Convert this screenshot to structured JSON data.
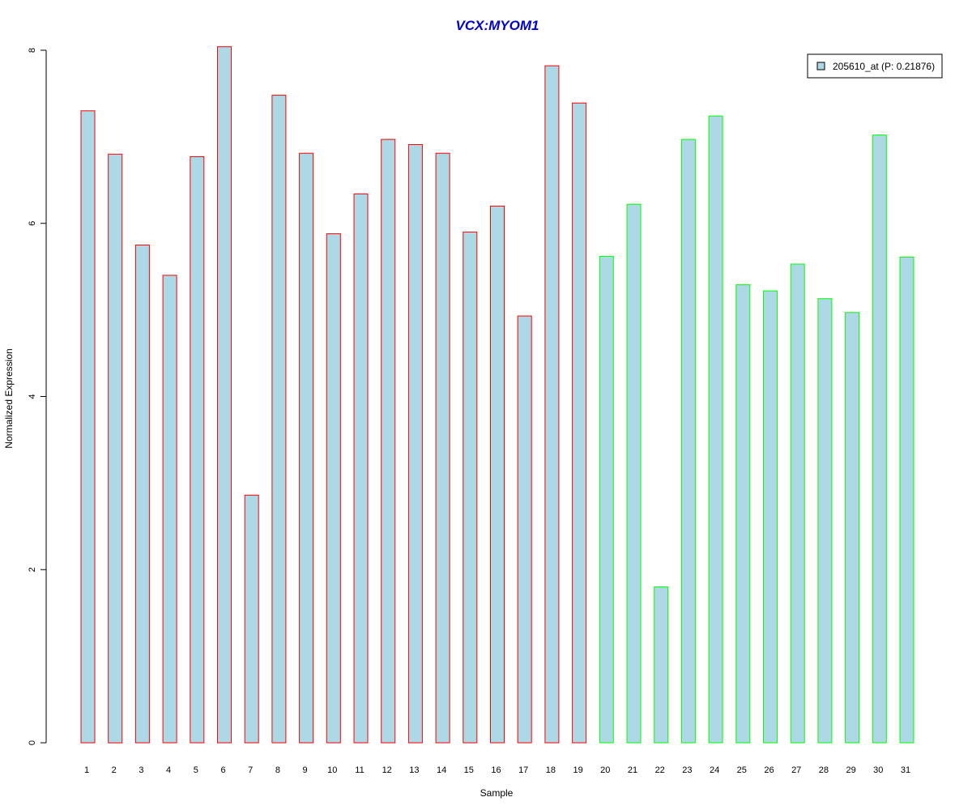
{
  "chart_data": {
    "type": "bar",
    "title": "VCX:MYOM1",
    "title_color": "#0000CC",
    "xlabel": "Sample",
    "ylabel": "Normalized Expression",
    "categories": [
      "1",
      "2",
      "3",
      "4",
      "5",
      "6",
      "7",
      "8",
      "9",
      "10",
      "11",
      "12",
      "13",
      "14",
      "15",
      "16",
      "17",
      "18",
      "19",
      "20",
      "21",
      "22",
      "23",
      "24",
      "25",
      "26",
      "27",
      "28",
      "29",
      "30",
      "31"
    ],
    "series": [
      {
        "name": "205610_at (P: 0.21876)",
        "values": [
          7.3,
          6.8,
          5.75,
          5.4,
          6.77,
          8.04,
          2.86,
          7.48,
          6.81,
          5.88,
          6.34,
          6.97,
          6.91,
          6.81,
          5.9,
          6.2,
          4.93,
          7.82,
          7.39,
          5.62,
          6.22,
          1.8,
          6.97,
          7.24,
          5.29,
          5.22,
          5.53,
          5.13,
          4.97,
          7.02,
          5.61
        ]
      }
    ],
    "groups": [
      "red",
      "red",
      "red",
      "red",
      "red",
      "red",
      "red",
      "red",
      "red",
      "red",
      "red",
      "red",
      "red",
      "red",
      "red",
      "red",
      "red",
      "red",
      "red",
      "green",
      "green",
      "green",
      "green",
      "green",
      "green",
      "green",
      "green",
      "green",
      "green",
      "green",
      "green"
    ],
    "colors": {
      "fill": "#ADD8E6",
      "group_red": "#FF0000",
      "group_green": "#00FF00"
    },
    "ylim": [
      0,
      8
    ],
    "yticks": [
      0,
      2,
      4,
      6,
      8
    ],
    "grid": false,
    "legend_position": "top-right"
  }
}
